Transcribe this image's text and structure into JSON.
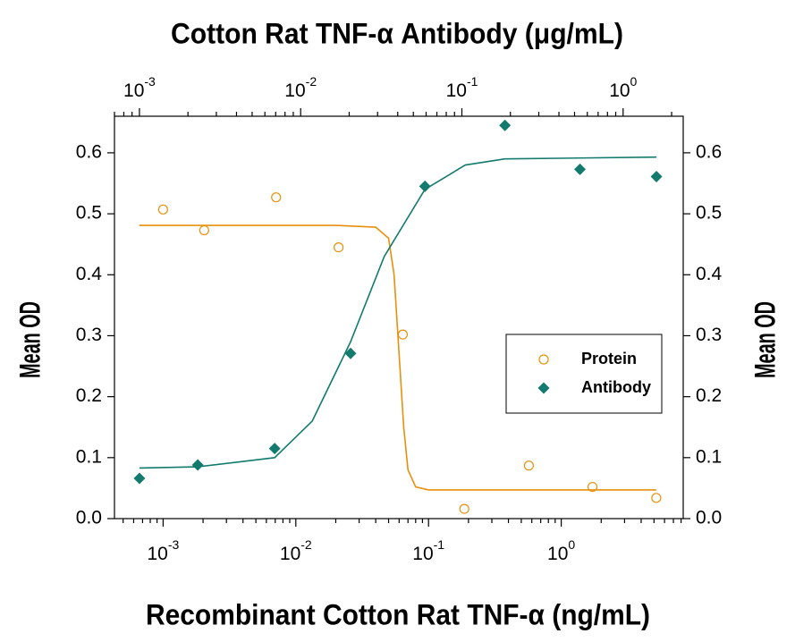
{
  "chart_data": {
    "type": "scatter",
    "x_label": "Recombinant Cotton Rat TNF-α (ng/mL)",
    "x2_label": "Cotton Rat TNF-α Antibody (μg/mL)",
    "y_label": "Mean OD",
    "y2_label": "Mean OD",
    "xscale": "log",
    "xlim": [
      0.00043,
      8.3
    ],
    "xticks": [
      {
        "value": 0.001,
        "label": "10",
        "exponent": "-3"
      },
      {
        "value": 0.01,
        "label": "10",
        "exponent": "-2"
      },
      {
        "value": 0.1,
        "label": "10",
        "exponent": "-1"
      },
      {
        "value": 1,
        "label": "10",
        "exponent": "0"
      }
    ],
    "x2lim": [
      0.0007,
      2.36
    ],
    "x2ticks": [
      {
        "value": 0.001,
        "label": "10",
        "exponent": "-3"
      },
      {
        "value": 0.01,
        "label": "10",
        "exponent": "-2"
      },
      {
        "value": 0.1,
        "label": "10",
        "exponent": "-1"
      },
      {
        "value": 1,
        "label": "10",
        "exponent": "0"
      }
    ],
    "ylim": [
      0,
      0.66
    ],
    "yticks": [
      {
        "value": 0,
        "label": "0.0"
      },
      0.1,
      0.2,
      0.3,
      0.4,
      0.5,
      0.6
    ],
    "y2lim": [
      0,
      0.66
    ],
    "y2ticks": [
      {
        "value": 0,
        "label": "0.0"
      },
      0.1,
      0.2,
      0.3,
      0.4,
      0.5,
      0.6
    ],
    "series": [
      {
        "name": "Protein",
        "color": "#e8900c",
        "marker": "circle",
        "xaxis": "x",
        "x": [
          0.001,
          0.00204,
          0.0071,
          0.021,
          0.064,
          0.186,
          0.57,
          1.72,
          5.2
        ],
        "values": [
          0.507,
          0.473,
          0.527,
          0.445,
          0.302,
          0.016,
          0.087,
          0.052,
          0.034
        ],
        "curve": {
          "x": [
            0.00066,
            0.02,
            0.04,
            0.05,
            0.055,
            0.06,
            0.065,
            0.07,
            0.08,
            0.1,
            5.2
          ],
          "values": [
            0.481,
            0.481,
            0.478,
            0.46,
            0.4,
            0.27,
            0.15,
            0.08,
            0.052,
            0.047,
            0.047
          ]
        }
      },
      {
        "name": "Antibody",
        "color": "#137a6e",
        "marker": "diamond",
        "xaxis": "x2",
        "x": [
          0.001,
          0.0023,
          0.0069,
          0.0204,
          0.059,
          0.185,
          0.54,
          1.61
        ],
        "values": [
          0.066,
          0.088,
          0.115,
          0.271,
          0.545,
          0.645,
          0.573,
          0.561
        ],
        "curve": {
          "x": [
            0.001,
            0.0023,
            0.0069,
            0.0118,
            0.0204,
            0.033,
            0.059,
            0.105,
            0.185,
            1.61
          ],
          "values": [
            0.083,
            0.085,
            0.1,
            0.16,
            0.29,
            0.43,
            0.54,
            0.58,
            0.59,
            0.593
          ]
        }
      }
    ]
  }
}
